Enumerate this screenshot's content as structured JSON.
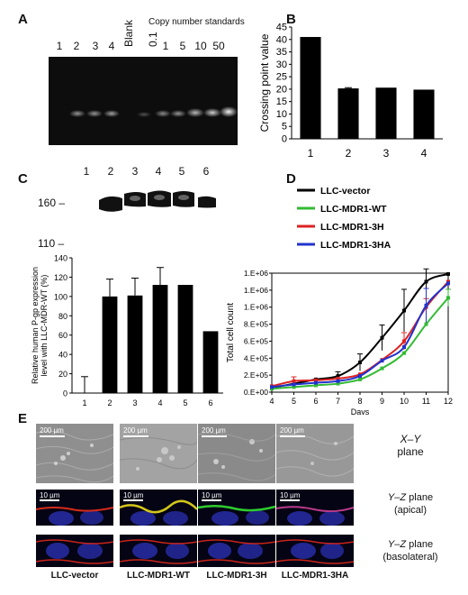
{
  "panels": {
    "a": "A",
    "b": "B",
    "c": "C",
    "d": "D",
    "e": "E"
  },
  "panel_a": {
    "lane_labels": [
      "1",
      "2",
      "3",
      "4"
    ],
    "blank_label": "Blank",
    "standards_label": "Copy number standards",
    "standards": [
      "0.1",
      "1",
      "5",
      "10",
      "50"
    ]
  },
  "panel_c": {
    "lanes": [
      "1",
      "2",
      "3",
      "4",
      "5",
      "6"
    ],
    "mw_markers": [
      "160 –",
      "110 –"
    ]
  },
  "panel_e": {
    "xy_scale": "200 µm",
    "yz_scale": "10 µm",
    "groups": [
      "LLC-vector",
      "LLC-MDR1-WT",
      "LLC-MDR1-3H",
      "LLC-MDR1-3HA"
    ],
    "plane_xy_italic": "X–Y",
    "plane_xy_text": "plane",
    "plane_apical_italic": "Y–Z",
    "plane_apical_text": "plane",
    "plane_apical_sub": "(apical)",
    "plane_baso_italic": "Y–Z",
    "plane_baso_text": "plane",
    "plane_baso_sub": "(basolateral)"
  },
  "chart_data": [
    {
      "type": "bar",
      "panel": "B",
      "ylabel": "Crossing point value",
      "categories": [
        "1",
        "2",
        "3",
        "4"
      ],
      "values": [
        41,
        20.3,
        20.6,
        19.8
      ],
      "errors": [
        0,
        0.3,
        0,
        0
      ],
      "ylim": [
        0,
        45
      ],
      "yticks": [
        0,
        5,
        10,
        15,
        20,
        25,
        30,
        35,
        40,
        45
      ],
      "bar_color": "#000000"
    },
    {
      "type": "bar",
      "panel": "C",
      "ylabel": "Relative human P-gp expression level with LLC-MDR-WT (%)",
      "categories": [
        "1",
        "2",
        "3",
        "4",
        "5",
        "6"
      ],
      "values": [
        0,
        100,
        101,
        112,
        112,
        64
      ],
      "errors": [
        17,
        18,
        18,
        18,
        0,
        0
      ],
      "ylim": [
        0,
        140
      ],
      "yticks": [
        0,
        20,
        40,
        60,
        80,
        100,
        120,
        140
      ],
      "bar_color": "#000000"
    },
    {
      "type": "line",
      "panel": "D",
      "xlabel": "Days",
      "ylabel": "Total cell count",
      "x": [
        4,
        5,
        6,
        7,
        8,
        9,
        10,
        11,
        12
      ],
      "xlim": [
        4,
        12
      ],
      "ylim": [
        0,
        1400000
      ],
      "yticks": [
        0,
        200000,
        400000,
        600000,
        800000,
        1000000,
        1200000,
        1400000
      ],
      "ytick_labels": [
        "0.E+00",
        "2.E+05",
        "4.E+05",
        "6.E+05",
        "8.E+05",
        "1.E+06",
        "1.E+06",
        "1.E+06"
      ],
      "legend_position": "top-left",
      "series": [
        {
          "name": "LLC-vector",
          "color": "#000000",
          "values": [
            50000,
            100000,
            150000,
            190000,
            350000,
            640000,
            960000,
            1300000,
            1390000
          ],
          "errors": [
            0,
            0,
            0,
            50000,
            100000,
            150000,
            250000,
            150000,
            0
          ]
        },
        {
          "name": "LLC-MDR1-WT",
          "color": "#33bb33",
          "values": [
            40000,
            60000,
            80000,
            100000,
            150000,
            280000,
            460000,
            800000,
            1110000
          ],
          "errors": [
            0,
            0,
            0,
            0,
            0,
            0,
            0,
            0,
            100000
          ]
        },
        {
          "name": "LLC-MDR1-3H",
          "color": "#dd2222",
          "values": [
            70000,
            130000,
            140000,
            160000,
            210000,
            380000,
            600000,
            1000000,
            1300000
          ],
          "errors": [
            0,
            50000,
            0,
            0,
            0,
            0,
            100000,
            100000,
            0
          ]
        },
        {
          "name": "LLC-MDR1-3HA",
          "color": "#2233cc",
          "values": [
            60000,
            90000,
            110000,
            130000,
            190000,
            370000,
            530000,
            1020000,
            1280000
          ],
          "errors": [
            0,
            0,
            0,
            0,
            0,
            0,
            0,
            200000,
            0
          ]
        }
      ]
    }
  ]
}
